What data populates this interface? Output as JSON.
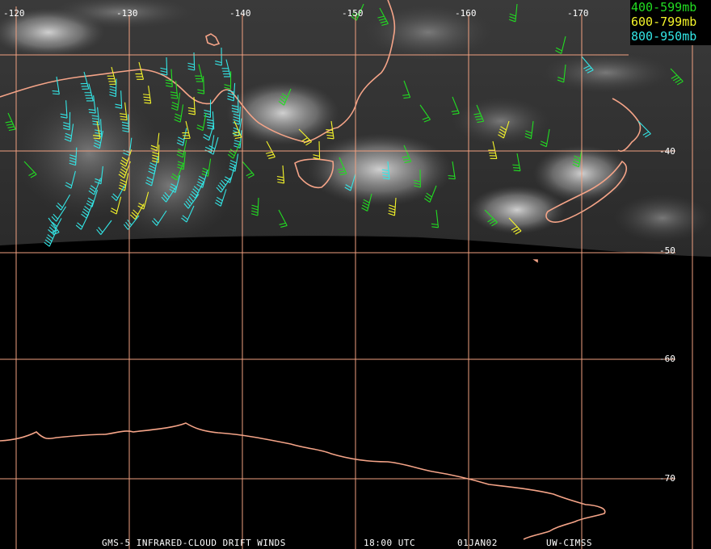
{
  "map": {
    "lon_labels": [
      "-120",
      "-130",
      "-140",
      "-150",
      "-160",
      "-170"
    ],
    "lat_labels": [
      "-40",
      "-50",
      "-60",
      "-70"
    ],
    "grid_color": "#f0a080",
    "coast_color": "#f5a488"
  },
  "legend": {
    "items": [
      {
        "text": "400-599mb",
        "color": "#22dd22"
      },
      {
        "text": "600-799mb",
        "color": "#f5f52a"
      },
      {
        "text": "800-950mb",
        "color": "#33e6e6"
      }
    ]
  },
  "footer": {
    "product": "GMS-5 INFRARED-CLOUD DRIFT WINDS",
    "time": "18:00 UTC",
    "date": "01JAN02",
    "source": "UW-CIMSS"
  }
}
